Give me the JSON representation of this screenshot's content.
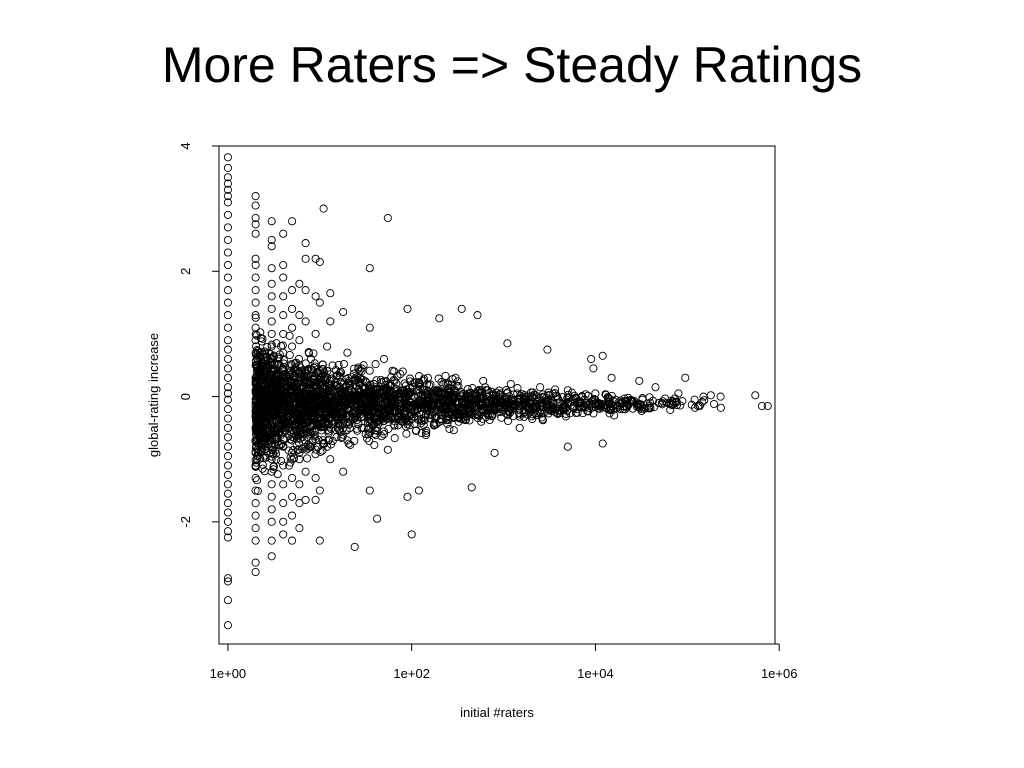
{
  "slide": {
    "title": "More Raters => Steady Ratings"
  },
  "chart_data": {
    "type": "scatter",
    "title": "",
    "xlabel": "initial #raters",
    "ylabel": "global-rating increase",
    "x_scale": "log10",
    "x_ticks": [
      {
        "value": 1,
        "label": "1e+00"
      },
      {
        "value": 100,
        "label": "1e+02"
      },
      {
        "value": 10000,
        "label": "1e+04"
      },
      {
        "value": 1000000,
        "label": "1e+06"
      }
    ],
    "y_ticks": [
      {
        "value": -2,
        "label": "-2"
      },
      {
        "value": 0,
        "label": "0"
      },
      {
        "value": 2,
        "label": "2"
      },
      {
        "value": 4,
        "label": "4"
      }
    ],
    "xlim": [
      0.8,
      900000
    ],
    "ylim": [
      -3.95,
      4.0
    ],
    "grid": false,
    "marker": "open-circle",
    "series": [
      {
        "values": [
          [
            1,
            3.82
          ],
          [
            1,
            3.65
          ],
          [
            1,
            3.5
          ],
          [
            1,
            3.4
          ],
          [
            1,
            3.3
          ],
          [
            1,
            3.2
          ],
          [
            1,
            3.1
          ],
          [
            1,
            2.9
          ],
          [
            1,
            2.7
          ],
          [
            1,
            2.5
          ],
          [
            1,
            2.3
          ],
          [
            1,
            2.1
          ],
          [
            1,
            1.9
          ],
          [
            1,
            1.7
          ],
          [
            1,
            1.5
          ],
          [
            1,
            1.3
          ],
          [
            1,
            1.1
          ],
          [
            1,
            0.9
          ],
          [
            1,
            0.75
          ],
          [
            1,
            0.6
          ],
          [
            1,
            0.45
          ],
          [
            1,
            0.3
          ],
          [
            1,
            0.15
          ],
          [
            1,
            0.05
          ],
          [
            1,
            -0.05
          ],
          [
            1,
            -0.2
          ],
          [
            1,
            -0.35
          ],
          [
            1,
            -0.5
          ],
          [
            1,
            -0.65
          ],
          [
            1,
            -0.8
          ],
          [
            1,
            -0.95
          ],
          [
            1,
            -1.1
          ],
          [
            1,
            -1.25
          ],
          [
            1,
            -1.4
          ],
          [
            1,
            -1.55
          ],
          [
            1,
            -1.7
          ],
          [
            1,
            -1.85
          ],
          [
            1,
            -2.0
          ],
          [
            1,
            -2.15
          ],
          [
            1,
            -2.25
          ],
          [
            1,
            -2.9
          ],
          [
            1,
            -2.95
          ],
          [
            1,
            -3.25
          ],
          [
            1,
            -3.65
          ],
          [
            2,
            3.2
          ],
          [
            2,
            3.05
          ],
          [
            2,
            2.85
          ],
          [
            2,
            2.75
          ],
          [
            2,
            2.6
          ],
          [
            2,
            2.2
          ],
          [
            2,
            2.1
          ],
          [
            2,
            1.9
          ],
          [
            2,
            1.7
          ],
          [
            2,
            1.5
          ],
          [
            2,
            1.3
          ],
          [
            2,
            1.1
          ],
          [
            2,
            0.9
          ],
          [
            2,
            0.7
          ],
          [
            2,
            0.5
          ],
          [
            2,
            0.3
          ],
          [
            2,
            0.1
          ],
          [
            2,
            -0.1
          ],
          [
            2,
            -0.3
          ],
          [
            2,
            -0.5
          ],
          [
            2,
            -0.7
          ],
          [
            2,
            -0.9
          ],
          [
            2,
            -1.1
          ],
          [
            2,
            -1.3
          ],
          [
            2,
            -1.5
          ],
          [
            2,
            -1.7
          ],
          [
            2,
            -1.9
          ],
          [
            2,
            -2.1
          ],
          [
            2,
            -2.3
          ],
          [
            2,
            -2.65
          ],
          [
            2,
            -2.8
          ],
          [
            3,
            2.8
          ],
          [
            3,
            2.5
          ],
          [
            3,
            2.4
          ],
          [
            3,
            2.05
          ],
          [
            3,
            1.8
          ],
          [
            3,
            1.6
          ],
          [
            3,
            1.4
          ],
          [
            3,
            1.2
          ],
          [
            3,
            1.0
          ],
          [
            3,
            0.8
          ],
          [
            3,
            0.6
          ],
          [
            3,
            0.4
          ],
          [
            3,
            0.2
          ],
          [
            3,
            0.0
          ],
          [
            3,
            -0.2
          ],
          [
            3,
            -0.4
          ],
          [
            3,
            -0.6
          ],
          [
            3,
            -0.8
          ],
          [
            3,
            -1.0
          ],
          [
            3,
            -1.2
          ],
          [
            3,
            -1.4
          ],
          [
            3,
            -1.6
          ],
          [
            3,
            -1.8
          ],
          [
            3,
            -2.0
          ],
          [
            3,
            -2.3
          ],
          [
            3,
            -2.55
          ],
          [
            4,
            2.6
          ],
          [
            4,
            2.1
          ],
          [
            4,
            1.9
          ],
          [
            4,
            1.6
          ],
          [
            4,
            1.3
          ],
          [
            4,
            1.0
          ],
          [
            4,
            0.7
          ],
          [
            4,
            0.4
          ],
          [
            4,
            0.1
          ],
          [
            4,
            -0.2
          ],
          [
            4,
            -0.5
          ],
          [
            4,
            -0.8
          ],
          [
            4,
            -1.1
          ],
          [
            4,
            -1.4
          ],
          [
            4,
            -1.7
          ],
          [
            4,
            -2.0
          ],
          [
            4,
            -2.2
          ],
          [
            5,
            2.8
          ],
          [
            5,
            1.7
          ],
          [
            5,
            1.4
          ],
          [
            5,
            1.1
          ],
          [
            5,
            0.8
          ],
          [
            5,
            0.5
          ],
          [
            5,
            0.2
          ],
          [
            5,
            -0.1
          ],
          [
            5,
            -0.4
          ],
          [
            5,
            -0.7
          ],
          [
            5,
            -1.0
          ],
          [
            5,
            -1.3
          ],
          [
            5,
            -1.6
          ],
          [
            5,
            -1.9
          ],
          [
            5,
            -2.3
          ],
          [
            6,
            1.8
          ],
          [
            6,
            1.3
          ],
          [
            6,
            0.9
          ],
          [
            6,
            -0.9
          ],
          [
            6,
            -1.4
          ],
          [
            6,
            -2.1
          ],
          [
            7,
            2.45
          ],
          [
            7,
            2.2
          ],
          [
            7,
            1.7
          ],
          [
            7,
            1.2
          ],
          [
            7,
            -1.2
          ],
          [
            7,
            -1.65
          ],
          [
            9,
            2.2
          ],
          [
            9,
            1.6
          ],
          [
            9,
            1.0
          ],
          [
            9,
            -1.3
          ],
          [
            9,
            -1.65
          ],
          [
            10,
            2.15
          ],
          [
            10,
            1.5
          ],
          [
            10,
            -1.5
          ],
          [
            10,
            -2.3
          ],
          [
            11,
            3.0
          ],
          [
            13,
            1.65
          ],
          [
            13,
            1.2
          ],
          [
            13,
            -1.0
          ],
          [
            18,
            1.35
          ],
          [
            18,
            -1.2
          ],
          [
            24,
            -2.4
          ],
          [
            35,
            2.05
          ],
          [
            35,
            1.1
          ],
          [
            35,
            -1.5
          ],
          [
            42,
            -1.95
          ],
          [
            55,
            2.85
          ],
          [
            55,
            -0.85
          ],
          [
            90,
            1.4
          ],
          [
            90,
            -1.6
          ],
          [
            100,
            -2.2
          ],
          [
            120,
            -1.5
          ],
          [
            200,
            1.25
          ],
          [
            350,
            1.4
          ],
          [
            450,
            -1.45
          ],
          [
            520,
            1.3
          ],
          [
            800,
            -0.9
          ],
          [
            1100,
            0.85
          ],
          [
            1500,
            -0.5
          ],
          [
            3000,
            0.75
          ],
          [
            5000,
            -0.8
          ],
          [
            9000,
            0.6
          ],
          [
            9500,
            0.45
          ],
          [
            12000,
            0.65
          ],
          [
            12000,
            -0.75
          ],
          [
            15000,
            0.3
          ],
          [
            16000,
            -0.3
          ],
          [
            20000,
            -0.2
          ],
          [
            30000,
            0.25
          ],
          [
            45000,
            0.15
          ],
          [
            60000,
            -0.1
          ],
          [
            80000,
            0.05
          ],
          [
            95000,
            0.3
          ],
          [
            120000,
            -0.05
          ],
          [
            150000,
            0.0
          ],
          [
            180000,
            0.02
          ],
          [
            230000,
            0.0
          ],
          [
            550000,
            0.02
          ],
          [
            650000,
            -0.15
          ],
          [
            750000,
            -0.15
          ]
        ]
      }
    ],
    "dense_core": {
      "note_points": [
        [
          6,
          -1.7
        ],
        [
          6,
          -1.0
        ],
        [
          6,
          -0.5
        ],
        [
          6,
          0.0
        ],
        [
          6,
          0.5
        ],
        [
          8,
          -0.6
        ],
        [
          8,
          0.6
        ],
        [
          8,
          0.0
        ],
        [
          12,
          -0.8
        ],
        [
          12,
          0.8
        ],
        [
          12,
          -0.3
        ],
        [
          12,
          0.3
        ],
        [
          20,
          -0.7
        ],
        [
          20,
          0.7
        ],
        [
          20,
          0.0
        ],
        [
          30,
          -0.5
        ],
        [
          30,
          0.5
        ],
        [
          50,
          -0.6
        ],
        [
          50,
          0.6
        ],
        [
          80,
          0.4
        ],
        [
          80,
          -0.4
        ],
        [
          150,
          0.3
        ],
        [
          150,
          -0.3
        ],
        [
          300,
          0.3
        ],
        [
          300,
          -0.3
        ],
        [
          600,
          0.25
        ],
        [
          600,
          -0.25
        ],
        [
          1200,
          0.2
        ],
        [
          1200,
          -0.2
        ],
        [
          2500,
          0.15
        ],
        [
          2500,
          -0.15
        ],
        [
          5000,
          0.1
        ],
        [
          5000,
          -0.1
        ],
        [
          10000,
          0.05
        ],
        [
          10000,
          -0.05
        ]
      ]
    }
  }
}
